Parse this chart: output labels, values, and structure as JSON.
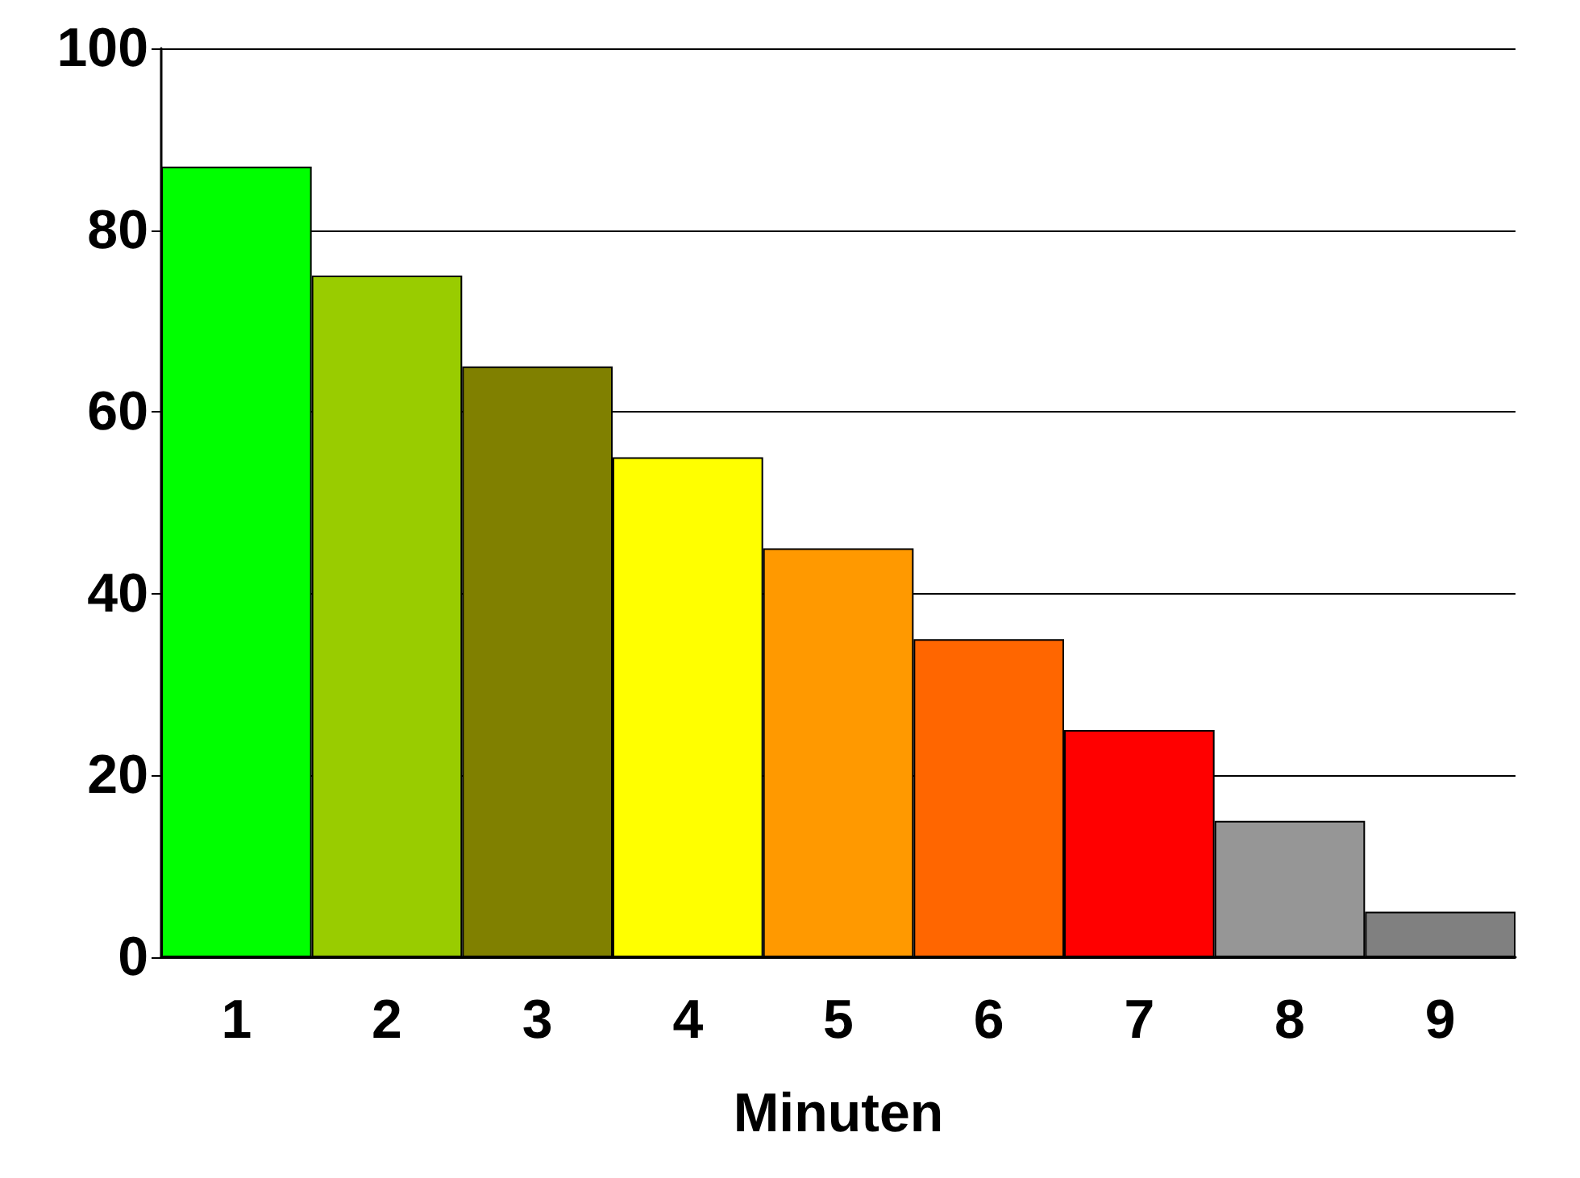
{
  "chart_data": {
    "type": "bar",
    "xlabel": "Minuten",
    "categories": [
      "1",
      "2",
      "3",
      "4",
      "5",
      "6",
      "7",
      "8",
      "9"
    ],
    "values": [
      87,
      75,
      65,
      55,
      45,
      35,
      25,
      15,
      5
    ],
    "colors": [
      "#00ff00",
      "#99cc00",
      "#808000",
      "#ffff00",
      "#ff9900",
      "#ff6600",
      "#ff0000",
      "#969696",
      "#808080"
    ],
    "ylim": [
      0,
      100
    ],
    "yticks": [
      0,
      20,
      40,
      60,
      80,
      100
    ],
    "grid": "y"
  }
}
